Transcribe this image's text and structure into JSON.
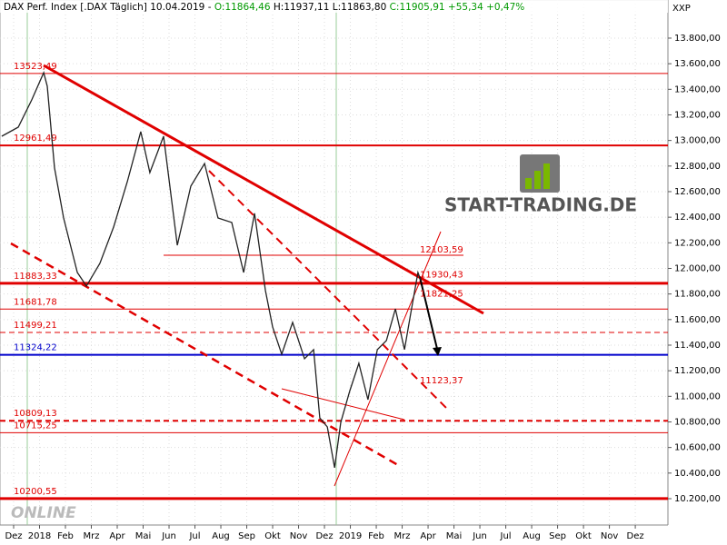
{
  "chart_data": {
    "type": "line",
    "header": [
      {
        "text": "DAX Perf. Index [.DAX  Täglich] 10.04.2019 - ",
        "color": "#000000"
      },
      {
        "text": "O:11864,46",
        "color": "#009900"
      },
      {
        "text": " H:11937,11 L:11863,80 ",
        "color": "#000000"
      },
      {
        "text": "C:11905,91",
        "color": "#009900"
      },
      {
        "text": " +55,34 +0,47%",
        "color": "#009900"
      }
    ],
    "corner_label": "XXP",
    "logo": "START-TRADING.DE",
    "watermark": "ONLINE",
    "xlim": [
      -0.526,
      25.26
    ],
    "xticks": [
      {
        "value": 0,
        "label": "Dez"
      },
      {
        "value": 1,
        "label": "2018"
      },
      {
        "value": 2,
        "label": "Feb"
      },
      {
        "value": 3,
        "label": "Mrz"
      },
      {
        "value": 4,
        "label": "Apr"
      },
      {
        "value": 5,
        "label": "Mai"
      },
      {
        "value": 6,
        "label": "Jun"
      },
      {
        "value": 7,
        "label": "Jul"
      },
      {
        "value": 8,
        "label": "Aug"
      },
      {
        "value": 9,
        "label": "Sep"
      },
      {
        "value": 10,
        "label": "Okt"
      },
      {
        "value": 11,
        "label": "Nov"
      },
      {
        "value": 12,
        "label": "Dez"
      },
      {
        "value": 13,
        "label": "2019"
      },
      {
        "value": 14,
        "label": "Feb"
      },
      {
        "value": 15,
        "label": "Mrz"
      },
      {
        "value": 16,
        "label": "Apr"
      },
      {
        "value": 17,
        "label": "Mai"
      },
      {
        "value": 18,
        "label": "Jun"
      },
      {
        "value": 19,
        "label": "Jul"
      },
      {
        "value": 20,
        "label": "Aug"
      },
      {
        "value": 21,
        "label": "Sep"
      },
      {
        "value": 22,
        "label": "Okt"
      },
      {
        "value": 23,
        "label": "Nov"
      },
      {
        "value": 24,
        "label": "Dez"
      }
    ],
    "ylim": [
      9994,
      14098
    ],
    "yticks": [
      {
        "value": 10200,
        "label": "10.200,00"
      },
      {
        "value": 10400,
        "label": "10.400,00"
      },
      {
        "value": 10600,
        "label": "10.600,00"
      },
      {
        "value": 10800,
        "label": "10.800,00"
      },
      {
        "value": 11000,
        "label": "11.000,00"
      },
      {
        "value": 11200,
        "label": "11.200,00"
      },
      {
        "value": 11400,
        "label": "11.400,00"
      },
      {
        "value": 11600,
        "label": "11.600,00"
      },
      {
        "value": 11800,
        "label": "11.800,00"
      },
      {
        "value": 12000,
        "label": "12.000,00"
      },
      {
        "value": 12200,
        "label": "12.200,00"
      },
      {
        "value": 12400,
        "label": "12.400,00"
      },
      {
        "value": 12600,
        "label": "12.600,00"
      },
      {
        "value": 12800,
        "label": "12.800,00"
      },
      {
        "value": 13000,
        "label": "13.000,00"
      },
      {
        "value": 13200,
        "label": "13.200,00"
      },
      {
        "value": 13400,
        "label": "13.400,00"
      },
      {
        "value": 13600,
        "label": "13.600,00"
      },
      {
        "value": 13800,
        "label": "13.800,00"
      }
    ],
    "grid": true,
    "series": [
      {
        "name": "DAX",
        "color": "#222222",
        "x": [
          -0.46,
          0.18,
          0.7,
          1.16,
          1.3,
          1.58,
          1.93,
          2.46,
          2.81,
          3.33,
          3.86,
          4.39,
          4.91,
          5.26,
          5.79,
          6.32,
          6.84,
          7.37,
          7.89,
          8.42,
          8.88,
          9.3,
          9.72,
          10.0,
          10.35,
          10.77,
          11.23,
          11.58,
          11.82,
          12.11,
          12.39,
          12.63,
          12.98,
          13.33,
          13.68,
          14.04,
          14.39,
          14.74,
          15.09,
          15.33,
          15.61,
          15.72
        ],
        "values": [
          13033,
          13104,
          13317,
          13530,
          13424,
          12785,
          12394,
          11968,
          11862,
          12039,
          12323,
          12678,
          13069,
          12749,
          13033,
          12181,
          12643,
          12820,
          12394,
          12359,
          11968,
          12430,
          11826,
          11542,
          11329,
          11578,
          11294,
          11365,
          10832,
          10761,
          10442,
          10797,
          11045,
          11258,
          10974,
          11365,
          11436,
          11684,
          11365,
          11649,
          11968,
          11906
        ]
      }
    ],
    "levels": [
      {
        "value": 13523.49,
        "label": "13523,49",
        "color": "#e00000",
        "width": 1,
        "dash": false
      },
      {
        "value": 12961.49,
        "label": "12961,49",
        "color": "#e00000",
        "width": 2,
        "dash": false
      },
      {
        "value": 11883.33,
        "label": "11883,33",
        "color": "#e00000",
        "width": 3,
        "dash": false
      },
      {
        "value": 11681.78,
        "label": "11681,78",
        "color": "#e00000",
        "width": 1,
        "dash": false
      },
      {
        "value": 11499.21,
        "label": "11499,21",
        "color": "#e00000",
        "width": 1,
        "dash": true
      },
      {
        "value": 11324.22,
        "label": "11324,22",
        "color": "#0000cc",
        "width": 2,
        "dash": false
      },
      {
        "value": 10809.13,
        "label": "10809,13",
        "color": "#e00000",
        "width": 2,
        "dash": true
      },
      {
        "value": 10715.25,
        "label": "10715,25",
        "color": "#e00000",
        "width": 1,
        "dash": false
      },
      {
        "value": 10200.55,
        "label": "10200,55",
        "color": "#e00000",
        "width": 3,
        "dash": false
      }
    ],
    "annotations": [
      {
        "value": 12103.59,
        "label": "12103,59"
      },
      {
        "value": 11930.43,
        "label": "11930,43"
      },
      {
        "value": 11821.25,
        "label": "11821,25"
      },
      {
        "value": 11123.37,
        "label": "11123,37"
      }
    ]
  }
}
